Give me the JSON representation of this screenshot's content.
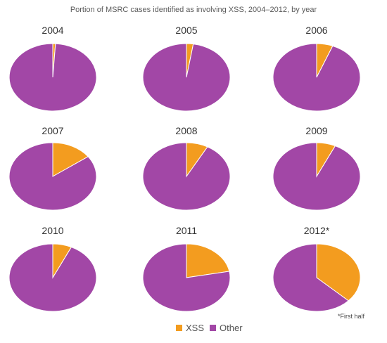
{
  "chart_data": {
    "type": "pie",
    "title": "Portion of MSRC cases identified as involving XSS, 2004–2012, by year",
    "footnote": "*First half",
    "colors": {
      "XSS": "#f39c1f",
      "Other": "#a247a6"
    },
    "legend": [
      "XSS",
      "Other"
    ],
    "legend_position": "bottom",
    "pies": [
      {
        "label": "2004",
        "slices": [
          {
            "name": "XSS",
            "value": 1
          },
          {
            "name": "Other",
            "value": 99
          }
        ]
      },
      {
        "label": "2005",
        "slices": [
          {
            "name": "XSS",
            "value": 2.5
          },
          {
            "name": "Other",
            "value": 97.5
          }
        ]
      },
      {
        "label": "2006",
        "slices": [
          {
            "name": "XSS",
            "value": 6
          },
          {
            "name": "Other",
            "value": 94
          }
        ]
      },
      {
        "label": "2007",
        "slices": [
          {
            "name": "XSS",
            "value": 15
          },
          {
            "name": "Other",
            "value": 85
          }
        ]
      },
      {
        "label": "2008",
        "slices": [
          {
            "name": "XSS",
            "value": 8
          },
          {
            "name": "Other",
            "value": 92
          }
        ]
      },
      {
        "label": "2009",
        "slices": [
          {
            "name": "XSS",
            "value": 7
          },
          {
            "name": "Other",
            "value": 93
          }
        ]
      },
      {
        "label": "2010",
        "slices": [
          {
            "name": "XSS",
            "value": 7
          },
          {
            "name": "Other",
            "value": 93
          }
        ]
      },
      {
        "label": "2011",
        "slices": [
          {
            "name": "XSS",
            "value": 22
          },
          {
            "name": "Other",
            "value": 78
          }
        ]
      },
      {
        "label": "2012*",
        "slices": [
          {
            "name": "XSS",
            "value": 37
          },
          {
            "name": "Other",
            "value": 63
          }
        ]
      }
    ]
  }
}
